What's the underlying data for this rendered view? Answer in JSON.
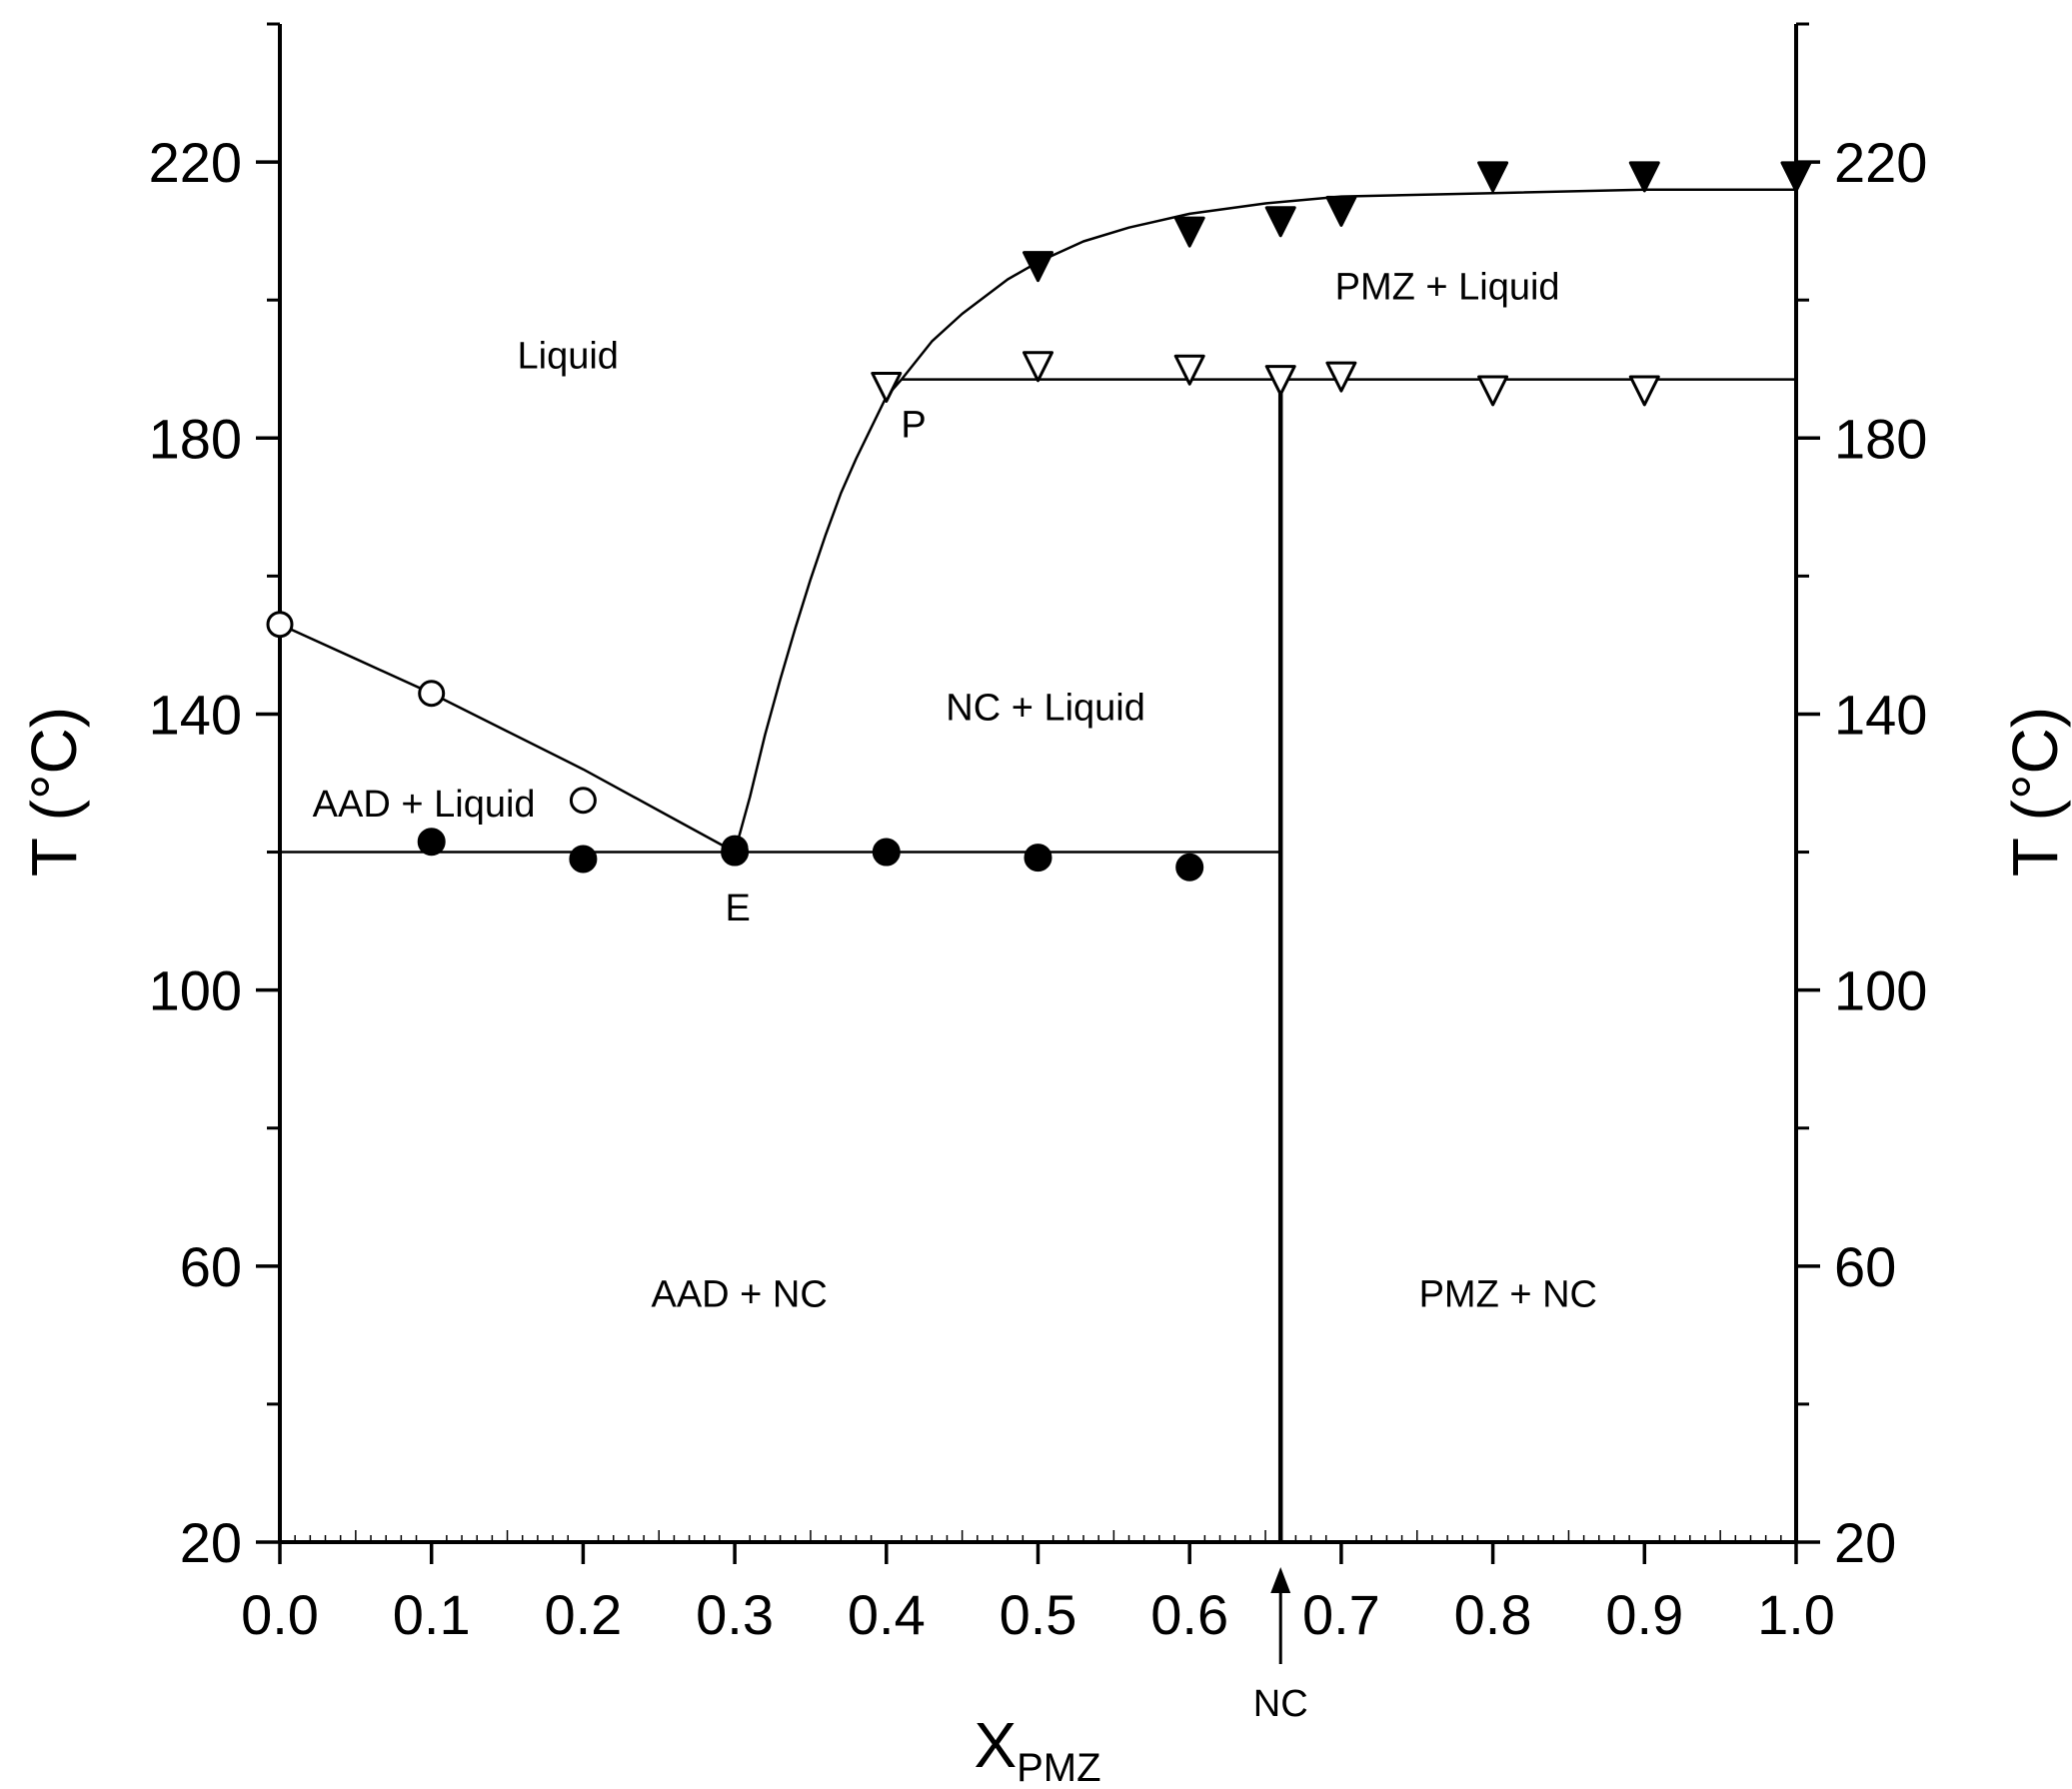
{
  "chart_data": {
    "type": "scatter",
    "title": "",
    "xlabel": "X",
    "xlabel_sub": "PMZ",
    "ylabel": "T (°C)",
    "ylabel_right": "T (°C)",
    "xlim": [
      0.0,
      1.0
    ],
    "ylim": [
      20,
      240
    ],
    "x_ticks": [
      0.0,
      0.1,
      0.2,
      0.3,
      0.4,
      0.5,
      0.6,
      0.7,
      0.8,
      0.9,
      1.0
    ],
    "x_tick_labels": [
      "0.0",
      "0.1",
      "0.2",
      "0.3",
      "0.4",
      "0.5",
      "0.6",
      "0.7",
      "0.8",
      "0.9",
      "1.0"
    ],
    "y_ticks": [
      20,
      60,
      100,
      140,
      180,
      220
    ],
    "y_tick_labels": [
      "20",
      "60",
      "100",
      "140",
      "180",
      "220"
    ],
    "y_minor_ticks": [
      40,
      80,
      120,
      160,
      200,
      240
    ],
    "grid": false,
    "series": [
      {
        "marker": "open-circle",
        "x": [
          0.0,
          0.1,
          0.2,
          0.3
        ],
        "y": [
          153,
          143,
          127.5,
          120.5
        ]
      },
      {
        "marker": "filled-circle",
        "x": [
          0.1,
          0.2,
          0.3,
          0.4,
          0.5,
          0.6
        ],
        "y": [
          121.5,
          119,
          120,
          120,
          119.2,
          117.8
        ]
      },
      {
        "marker": "open-triangle-down",
        "x": [
          0.4,
          0.5,
          0.6,
          0.66,
          0.7,
          0.8,
          0.9
        ],
        "y": [
          187.5,
          190.5,
          190,
          188.5,
          189,
          187,
          187
        ]
      },
      {
        "marker": "filled-triangle-down",
        "x": [
          0.5,
          0.6,
          0.66,
          0.7,
          0.8,
          0.9,
          1.0
        ],
        "y": [
          205,
          210,
          211.5,
          213,
          218,
          218,
          218
        ]
      }
    ],
    "lines": {
      "eutectic_line": {
        "x": [
          0.0,
          0.66
        ],
        "y": [
          120,
          120
        ]
      },
      "peritectic_line": {
        "x": [
          0.41,
          1.0
        ],
        "y": [
          188.5,
          188.5
        ]
      },
      "compound_line": {
        "x": [
          0.66,
          0.66
        ],
        "y": [
          20,
          188.5
        ]
      },
      "aad_liquidus": {
        "x": [
          0.0,
          0.05,
          0.1,
          0.15,
          0.2,
          0.25,
          0.3
        ],
        "y": [
          153,
          148,
          143,
          137.5,
          132,
          126,
          120
        ]
      },
      "nc_liquidus": {
        "x": [
          0.3,
          0.31,
          0.32,
          0.33,
          0.34,
          0.35,
          0.36,
          0.37,
          0.38,
          0.39,
          0.4,
          0.41
        ],
        "y": [
          120,
          128,
          137,
          145,
          152.5,
          159.5,
          166,
          172,
          177,
          181.5,
          186,
          188.5
        ]
      },
      "pmz_liquidus": {
        "x": [
          0.41,
          0.43,
          0.45,
          0.48,
          0.5,
          0.53,
          0.56,
          0.6,
          0.65,
          0.7,
          0.8,
          0.9,
          1.0
        ],
        "y": [
          188.5,
          194,
          198,
          203,
          205.5,
          208.5,
          210.5,
          212.5,
          214,
          215,
          215.5,
          216,
          216
        ]
      }
    },
    "annotations": [
      {
        "text": "Liquid",
        "x": 0.19,
        "y": 192
      },
      {
        "text": "AAD + Liquid",
        "x": 0.095,
        "y": 127
      },
      {
        "text": "NC + Liquid",
        "x": 0.505,
        "y": 141
      },
      {
        "text": "PMZ + Liquid",
        "x": 0.77,
        "y": 202
      },
      {
        "text": "AAD + NC",
        "x": 0.303,
        "y": 56
      },
      {
        "text": "PMZ + NC",
        "x": 0.81,
        "y": 56
      },
      {
        "text": "E",
        "x": 0.302,
        "y": 112
      },
      {
        "text": "P",
        "x": 0.418,
        "y": 182
      }
    ],
    "compound_marker": {
      "text": "NC",
      "x": 0.66
    }
  }
}
